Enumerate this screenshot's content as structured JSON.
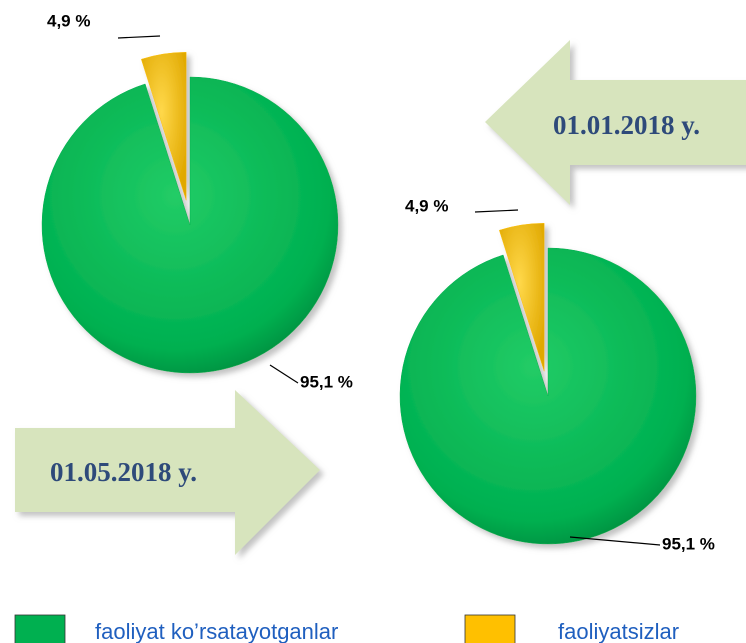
{
  "chart_data": [
    {
      "type": "pie",
      "annotation": "01.01.2018 y.",
      "categories": [
        "faoliyat ko’rsatayotganlar",
        "faoliyatsizlar"
      ],
      "values": [
        95.1,
        4.9
      ],
      "value_labels": [
        "95,1 %",
        "4,9 %"
      ],
      "colors": [
        "#00b050",
        "#ffc000"
      ]
    },
    {
      "type": "pie",
      "annotation": "01.05.2018 y.",
      "values": [
        95.1,
        4.9
      ],
      "value_labels": [
        "95,1 %",
        "4,9 %"
      ],
      "colors": [
        "#00b050",
        "#ffc000"
      ]
    }
  ]
}
